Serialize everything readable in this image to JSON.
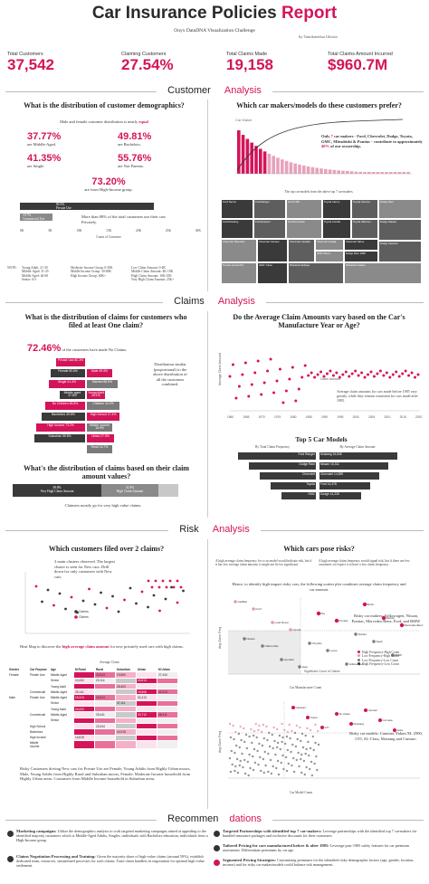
{
  "header": {
    "title_main": "Car Insurance Policies",
    "title_accent": "Report",
    "subtitle": "Onyx DataDNA Visualization Challenge",
    "byline": "by Tanokneidua Ghosia"
  },
  "kpis": [
    {
      "label": "Total Customers",
      "value": "37,542"
    },
    {
      "label": "Claiming Customers",
      "value": "27.54%"
    },
    {
      "label": "Total Claims Made",
      "value": "19,158"
    },
    {
      "label": "Total Claims Amount Incurred",
      "value": "$960.7M"
    }
  ],
  "sections": {
    "customer": {
      "main": "Customer",
      "accent": "Analysis"
    },
    "claims": {
      "main": "Claims",
      "accent": "Analysis"
    },
    "risk": {
      "main": "Risk",
      "accent": "Analysis"
    },
    "recs": {
      "main": "Recommen",
      "accent": "dations"
    }
  },
  "customer": {
    "q1": "What is the distribution of customer demographics?",
    "q1_note_pre": "Male and female customer distribution is nearly",
    "q1_note_accent": "equal",
    "stats": [
      {
        "pct": "37.77%",
        "text": "are Middle-Aged."
      },
      {
        "pct": "49.81%",
        "text": "are Bachelors."
      },
      {
        "pct": "41.35%",
        "text": "are Single."
      },
      {
        "pct": "55.76%",
        "text": "are Not Parents."
      }
    ],
    "income_pct": "73.20%",
    "income_text": "are from High-Income group.",
    "private_text": "More than 80% of the total customers use their cars Privately.",
    "bar_labels": [
      "Private Use",
      "Commercial Use"
    ],
    "bar_values": [
      "80.3%",
      "19.7%"
    ],
    "axis_label": "Count of Customer",
    "axis_ticks": [
      "0K",
      "5K",
      "10K",
      "15K",
      "20K",
      "25K",
      "30K"
    ],
    "note_label": "NOTE:",
    "notes": [
      [
        "Young Adult: 21-30",
        "Middle-Aged: 31-45",
        "Middle Aged: 46-60",
        "Senior: 61+"
      ],
      [
        "Moderate Income Group: 0-30K",
        "Middle Income Group: 30-60K",
        "High Income Group: 60K+"
      ],
      [
        "Low Claim Amount: 0-4K",
        "Middle Claim Amount: 4K-10K",
        "High Claim Amount: 10K-25K",
        "Very High Claim Amount: 25K+"
      ]
    ],
    "q2": "Which car makers/models do these customers prefer?",
    "pareto_title": "Car Maker",
    "pareto_callout_pre": "Only",
    "pareto_callout_num": "7",
    "pareto_callout_mid": "car makers - Ford, Chevrolet, Dodge, Toyota, GMC, Mitsubishi & Pontiac - contribute to approximately",
    "pareto_callout_pct": "40%",
    "pareto_callout_post": "of our ownership.",
    "treemap_caption": "The top car models from the above top 7 car-makers.",
    "treemap_boxes": [
      "Ford Taurus",
      "Ford Ranger",
      "Ford F150",
      "Toyota Camry",
      "Toyota Tacoma",
      "Dodge Ram",
      "Ford Mustang",
      "Ford Explorer",
      "Ford Econoline",
      "Toyota Corolla",
      "Toyota 4Runner",
      "Chevrolet Silverado",
      "Chevrolet Camaro",
      "Chevrolet Cavalier",
      "Chevrolet Impala",
      "Chevrolet Tahoe",
      "Dodge Dakota",
      "GMC Sierra",
      "Dodge Ram 1500",
      "Dodge Caravan",
      "Pontiac Grand Prix",
      "GMC Yukon",
      "Mitsubishi Eclipse",
      "Mitsubishi Galant"
    ]
  },
  "claims": {
    "q1": "What is the distribution of claims for customers who filed at least One claim?",
    "noclaim_pct": "72.46%",
    "noclaim_text": "of the customers have made No Claims.",
    "pyramid": [
      {
        "left": "Private Use",
        "right": "",
        "lv": "80.3%",
        "rv": ""
      },
      {
        "left": "Female",
        "right": "Male",
        "lv": "50.6%",
        "rv": "49.4%"
      },
      {
        "left": "Single",
        "right": "Married",
        "lv": "41.4%",
        "rv": "58.6%"
      },
      {
        "left": "Middle-aged",
        "right": "Young Adult",
        "lv": "37.8%",
        "rv": "25.1%"
      },
      {
        "left": "No Children",
        "right": "Children",
        "lv": "55.8%",
        "rv": "44.2%"
      },
      {
        "left": "Bachelors",
        "right": "High School",
        "lv": "49.8%",
        "rv": "27.4%"
      },
      {
        "left": "High Income",
        "right": "Middle Income",
        "lv": "73.2%",
        "rv": "18.9%"
      },
      {
        "left": "Suburban",
        "right": "Urban",
        "lv": "55.8%",
        "rv": "27.5%"
      },
      {
        "left": "",
        "right": "Rural",
        "lv": "",
        "rv": "16.7%"
      }
    ],
    "pyramid_note": "Distribution similar (proportional) to the above distribution of all the customers combined.",
    "q2": "What's the distribution of claims based on their claim amount values?",
    "amount_bars": [
      {
        "label": "Very High Claim Amount",
        "value": "49.8%"
      },
      {
        "label": "High Claim Amount",
        "value": "31.9%"
      }
    ],
    "amount_note": "Claimers mostly go for very high value claims.",
    "q3": "Do the Average Claim Amounts vary based on the Car's Manufacture Year or Age?",
    "scatter_label": "Claim Amount",
    "scatter_callout": "Average claim amounts for cars made before 1985 vary greatly, while they remain consistent for cars made after 1985.",
    "year_ticks": [
      "1960",
      "1965",
      "1970",
      "1975",
      "1980",
      "1985",
      "1990",
      "1995",
      "2000",
      "2005",
      "2010",
      "2015",
      "2020"
    ],
    "top5_title": "Top 5 Car Models",
    "top5_left": "By Total Claim Frequency",
    "top5_right": "By Average Claim Amount",
    "top5_rows": [
      {
        "l": "Ford Ranger",
        "lv": "",
        "r": "Mustang",
        "rv": "16,848"
      },
      {
        "l": "Dodge Ram",
        "lv": "",
        "r": "Nissan",
        "rv": "16,311"
      },
      {
        "l": "Chevrolet",
        "lv": "",
        "r": "Chevrolet",
        "rv": "14,899"
      },
      {
        "l": "Toyota",
        "lv": "",
        "r": "Ford",
        "rv": "14,478"
      },
      {
        "l": "GMC",
        "lv": "",
        "r": "Dodge",
        "rv": "14,228"
      }
    ]
  },
  "risk": {
    "q1": "Which customers filed over 2 claims?",
    "q1_note": "3 main clusters observed. The largest cluster is seen for New cars. Drill down for only customers with New cars.",
    "legend": [
      "Claims",
      "Claims"
    ],
    "hm_note_pre": "Heat Map to discover the",
    "hm_note_accent": "high average claim amount",
    "hm_note_post": "for new privately used cars with high claims.",
    "hm_header": [
      "Gender",
      "Car Purpose",
      "Age",
      "M Rural",
      "Rural",
      "Suburban",
      "Urban",
      "M Urban"
    ],
    "hm_title": "Average Claim",
    "hm_rows": [
      [
        "Female",
        "Private Use",
        "Middle-Aged",
        "",
        "23,043",
        "19,850",
        "",
        "27,434"
      ],
      [
        "",
        "",
        "Senior",
        "10,432",
        "22,114",
        "",
        "24,813",
        ""
      ],
      [
        "",
        "",
        "Young Adult",
        "",
        "",
        "25,403",
        "",
        ""
      ],
      [
        "",
        "Commercial",
        "Middle-Aged",
        "25,141",
        "",
        "",
        "19,808",
        "42,213"
      ],
      [
        "Male",
        "Private Use",
        "Middle-Aged",
        "19,313",
        "24,814",
        "",
        "32,413",
        ""
      ],
      [
        "",
        "",
        "Senior",
        "",
        "",
        "37,111",
        "",
        ""
      ],
      [
        "",
        "",
        "Young Adult",
        "24,000",
        "",
        "",
        "",
        ""
      ],
      [
        "",
        "Commercial",
        "Middle-Aged",
        "",
        "29,441",
        "",
        "20,712",
        "38,411"
      ],
      [
        "",
        "",
        "Senior",
        "",
        "",
        "",
        "",
        ""
      ],
      [
        "",
        "High School",
        "",
        "",
        "23,344",
        "",
        "",
        ""
      ],
      [
        "",
        "Bachelors",
        "",
        "",
        "",
        "24,518",
        "",
        ""
      ],
      [
        "",
        "High Income",
        "",
        "14,818",
        "",
        "",
        "",
        ""
      ],
      [
        "",
        "Middle Income",
        "",
        "",
        "",
        "",
        "",
        ""
      ]
    ],
    "risky_customers": "Risky Customers driving New cars for Private Use are Female, Young Adults from Highly Urban moors, Male, Young Adults from Highly Rural and Suburban moors, Female, Moderate Income household from Highly Urban areas. Customers from Middle Income household in Suburban areas.",
    "q2": "Which cars pose risks?",
    "risk_note_left": "A high average claim frequency for a car model would indicate risk, but if it has low average claim amount, it might not be too significant.",
    "risk_note_right": "A high average claim frequency would signal risk, but if there are few customers we expect it to have a low claim frequency.",
    "risk_heading": "Hence, to identify high impact risky cars, the following scatter plot combines average claim frequency and car amount.",
    "risky_top_label": "Risky car makers: Volkswagen, Nissan, Pontiac, Mercedes-Benz, Ford, and BMW",
    "quadrants": [
      "High Frequency-High Count",
      "Low Frequency-High Count",
      "Low Frequency-Low Count",
      "High Frequency-Low Count"
    ],
    "risky_models_label": "Risky car models: Caravan, Yukon XL 2500, GTI, SL-Class, Mustang and Camaro.",
    "scatter_top_points": [
      "Cadillac",
      "Land Rover",
      "Chrysler",
      "Volkswagen",
      "Mazda",
      "Nissan",
      "Hyundai",
      "Kia",
      "Subaru",
      "BMW",
      "Ford",
      "Honda",
      "Lexus",
      "Buick",
      "Mercedes-Benz",
      "Oldsmobile",
      "Jeep",
      "Pontiac",
      "Saab"
    ],
    "scatter_bottom_points": [
      "Caravan",
      "Yukon",
      "GTI",
      "SL-Class",
      "Mustang",
      "Camaro",
      "Corvette",
      "Jetta"
    ],
    "x_label_top": "Car Manufacturer Count",
    "x_label_bottom": "Car Model Count",
    "y_label": "Avg Claim Freq",
    "sig_label": "Significant Count of Claims"
  },
  "recs": [
    {
      "title": "Marketing campaigns:",
      "text": "Utilize the demographics analysis to craft targeted marketing campaigns aimed at appealing to the identified majority customers which is Middle-Aged Adults, Singles, individuals with Bachelors education, individuals from a High-Income group."
    },
    {
      "title": "Claims Negotiation Processing and Training:",
      "text": "Given the majority share of high-value claims (around 50%), establish dedicated team, resources, streamlined processes for such claims. Train claim handlers in negotiation for optimal high-value settlement."
    },
    {
      "title": "Targeted Partnerships with identified top 7 car-makers:",
      "text": "Leverage partnerships with the identified top 7 car-makers for bundled insurance packages and exclusive discounts for their customers."
    },
    {
      "title": "Tailored Pricing for cars manufactured before & after 1985:",
      "text": "Leverage post-1985 safety features for car premium assessment. Differentiate premiums by car age."
    },
    {
      "title": "Segmented Pricing Strategies:",
      "text": "Customizing premiums for the identified risky demographic factors (age, gender, location, income) and for risky car makes/models could balance risk management."
    }
  ],
  "colors": {
    "accent": "#d4145a",
    "dark": "#3a3a3a",
    "mid": "#7a7a7a",
    "light": "#c8c8c8"
  }
}
